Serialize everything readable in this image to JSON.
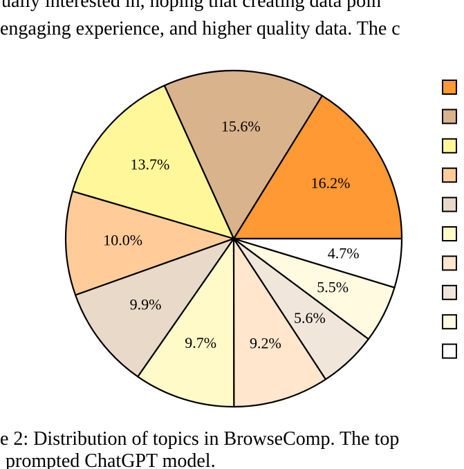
{
  "text_above": [
    "ually interested in, hoping that creating data poin",
    "engaging experience, and higher quality data. The c"
  ],
  "chart_data": {
    "type": "pie",
    "values": [
      16.2,
      15.6,
      13.7,
      10.0,
      9.9,
      9.7,
      9.2,
      5.6,
      5.5,
      4.7
    ],
    "value_labels": [
      "16.2%",
      "15.6%",
      "13.7%",
      "10.0%",
      "9.9%",
      "9.7%",
      "9.2%",
      "5.6%",
      "5.5%",
      "4.7%"
    ],
    "colors": [
      "#ff9933",
      "#d9b38c",
      "#fff799",
      "#ffcc99",
      "#e8d9c8",
      "#fffac8",
      "#ffe6cc",
      "#f0e6da",
      "#fffae0",
      "#ffffff"
    ]
  },
  "caption": [
    "e 2: Distribution of topics in BrowseComp. The top",
    "prompted ChatGPT model."
  ]
}
